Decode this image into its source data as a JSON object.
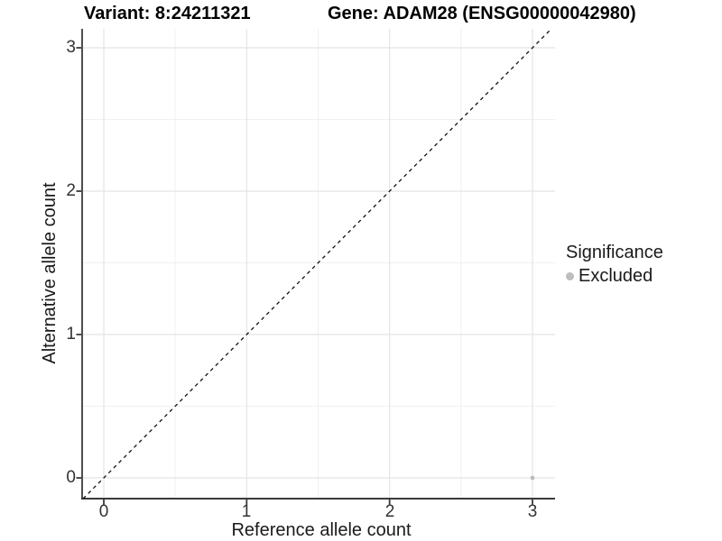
{
  "chart_data": {
    "type": "scatter",
    "title_left": "Variant: 8:24211321",
    "title_right": "Gene: ADAM28 (ENSG00000042980)",
    "xlabel": "Reference allele count",
    "ylabel": "Alternative allele count",
    "xlim": [
      -0.15,
      3.16
    ],
    "ylim": [
      -0.15,
      3.13
    ],
    "x_ticks": [
      0,
      1,
      2,
      3
    ],
    "y_ticks": [
      0,
      1,
      2,
      3
    ],
    "x_minor_ticks": [
      0.5,
      1.5,
      2.5
    ],
    "y_minor_ticks": [
      0.5,
      1.5,
      2.5
    ],
    "x_tick_labels": [
      "0",
      "1",
      "2",
      "3"
    ],
    "y_tick_labels": [
      "0",
      "1",
      "2",
      "3"
    ],
    "grid": true,
    "reference_line": {
      "type": "identity",
      "style": "dashed",
      "color": "#111111"
    },
    "series": [
      {
        "name": "Excluded",
        "color": "#bdbdbd",
        "points": [
          {
            "x": 3,
            "y": 0
          }
        ]
      }
    ],
    "legend": {
      "title": "Significance",
      "position": "right",
      "items": [
        {
          "label": "Excluded",
          "color": "#bdbdbd"
        }
      ]
    },
    "style": {
      "grid_major_color": "#e4e4e4",
      "grid_minor_color": "#f0f0f0",
      "axis_line_color": "#3a3a3a",
      "tick_color": "#3a3a3a",
      "background": "#ffffff"
    }
  }
}
